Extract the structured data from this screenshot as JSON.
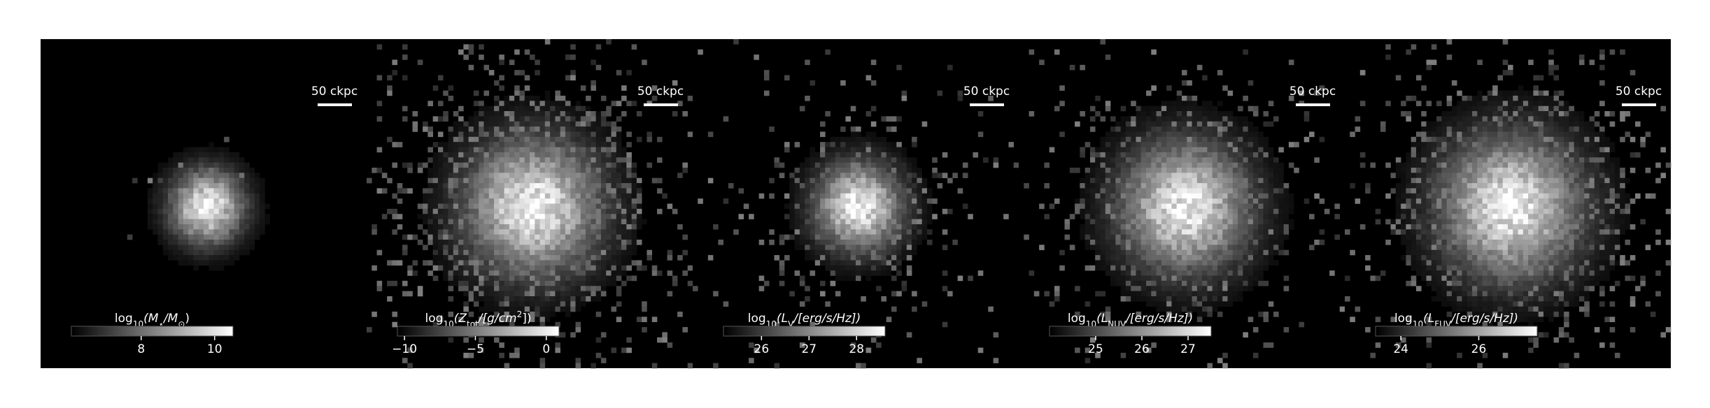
{
  "panels": [
    {
      "scale_bar": "50 ckpc",
      "colorbar": {
        "label": [
          "log",
          {
            "sub": "10"
          },
          "(M",
          {
            "sub": "⋆"
          },
          "/M",
          {
            "sub": "⊙"
          },
          ")"
        ],
        "clim": [
          6.1,
          10.5
        ],
        "ticks": [
          8,
          10
        ]
      }
    },
    {
      "scale_bar": "50 ckpc",
      "colorbar": {
        "label": [
          "log",
          {
            "sub": "10"
          },
          "(Z",
          {
            "sub": "tot"
          },
          "/[g/cm",
          {
            "sup": "2"
          },
          "])"
        ],
        "clim": [
          -10.5,
          0.9
        ],
        "ticks": [
          {
            "value": -10,
            "label": "−10"
          },
          {
            "value": -5,
            "label": "−5"
          },
          0
        ]
      }
    },
    {
      "scale_bar": "50 ckpc",
      "colorbar": {
        "label": [
          "log",
          {
            "sub": "10"
          },
          "(L",
          {
            "sub": "V"
          },
          "/[erg/s/Hz])"
        ],
        "clim": [
          25.2,
          28.6
        ],
        "ticks": [
          26,
          27,
          28
        ]
      }
    },
    {
      "scale_bar": "50 ckpc",
      "colorbar": {
        "label": [
          "log",
          {
            "sub": "10"
          },
          "(L",
          {
            "sub": "NUV"
          },
          "/[erg/s/Hz])"
        ],
        "clim": [
          24.0,
          27.5
        ],
        "ticks": [
          25,
          26,
          27
        ]
      }
    },
    {
      "scale_bar": "50 ckpc",
      "colorbar": {
        "label": [
          "log",
          {
            "sub": "10"
          },
          "(L",
          {
            "sub": "FUV"
          },
          "/[erg/s/Hz])"
        ],
        "clim": [
          23.35,
          27.5
        ],
        "ticks": [
          24,
          26
        ]
      }
    }
  ]
}
